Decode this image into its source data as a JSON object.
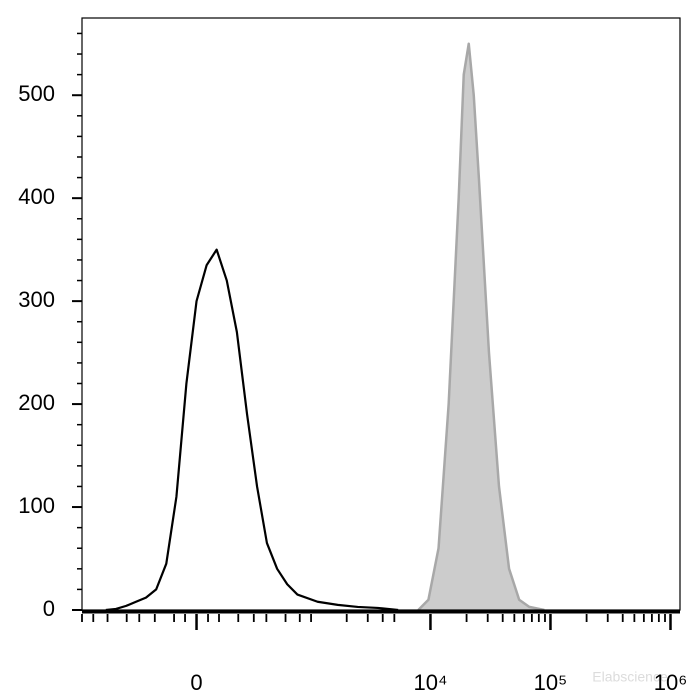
{
  "chart_data": {
    "type": "line",
    "xscale": "biexponential",
    "xlim": [
      -1000,
      1200000
    ],
    "ylim": [
      0,
      575
    ],
    "xticks": [
      0,
      {
        "value": 10000,
        "label": "10⁴"
      },
      {
        "value": 100000,
        "label": "10⁵"
      },
      {
        "value": 1000000,
        "label": "10⁶"
      }
    ],
    "xminorticks": [
      -1000,
      -800,
      -600,
      -400,
      -300,
      -200,
      -100,
      -50,
      50,
      100,
      200,
      300,
      400,
      600,
      800,
      1000,
      2000,
      3000,
      4000,
      5000,
      20000,
      30000,
      40000,
      50000,
      60000,
      70000,
      80000,
      90000,
      200000,
      300000,
      400000,
      500000,
      600000,
      700000,
      800000,
      900000
    ],
    "yticks": [
      0,
      100,
      200,
      300,
      400,
      500
    ],
    "yminorticks": [
      20,
      40,
      60,
      80,
      120,
      140,
      160,
      180,
      220,
      240,
      260,
      280,
      320,
      340,
      360,
      380,
      420,
      440,
      460,
      480,
      520,
      540,
      560
    ],
    "series": [
      {
        "color": "#a8a8a8",
        "fill": "#cccccc",
        "x": [
          7920,
          9620,
          11680,
          14180,
          17190,
          18940,
          20850,
          22950,
          25310,
          30730,
          37250,
          45200,
          54860,
          66550,
          88880
        ],
        "values": [
          0,
          10,
          60,
          200,
          400,
          520,
          550,
          500,
          420,
          250,
          120,
          40,
          10,
          3,
          0
        ]
      },
      {
        "color": "#000000",
        "x": [
          -621,
          -504,
          -405,
          -324,
          -254,
          -192,
          -138,
          -89,
          -44,
          0,
          44,
          89,
          138,
          192,
          254,
          324,
          405,
          504,
          621,
          763,
          1136,
          1681,
          2475,
          3645,
          5378
        ],
        "values": [
          0,
          1,
          4,
          8,
          12,
          20,
          45,
          110,
          220,
          300,
          335,
          350,
          320,
          270,
          190,
          120,
          65,
          40,
          25,
          15,
          8,
          5,
          3,
          2,
          0
        ]
      }
    ],
    "watermark": "Elabscience"
  }
}
